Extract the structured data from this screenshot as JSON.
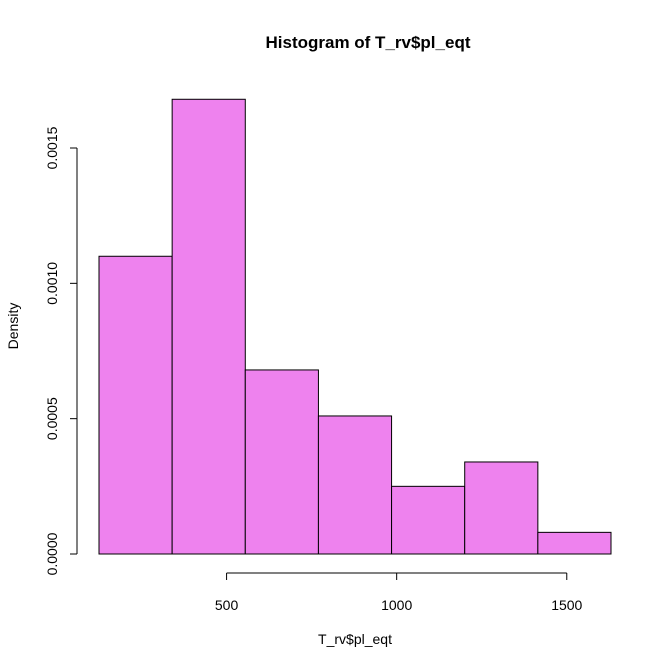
{
  "chart_data": {
    "type": "bar",
    "title": "Histogram of T_rv$pl_eqt",
    "xlabel": "T_rv$pl_eqt",
    "ylabel": "Density",
    "bins": [
      {
        "start": 125,
        "end": 340,
        "value": 0.0011
      },
      {
        "start": 340,
        "end": 555,
        "value": 0.00168
      },
      {
        "start": 555,
        "end": 770,
        "value": 0.00068
      },
      {
        "start": 770,
        "end": 985,
        "value": 0.00051
      },
      {
        "start": 985,
        "end": 1200,
        "value": 0.00025
      },
      {
        "start": 1200,
        "end": 1415,
        "value": 0.00034
      },
      {
        "start": 1415,
        "end": 1630,
        "value": 8e-05
      }
    ],
    "x_ticks": [
      500,
      1000,
      1500
    ],
    "x_tick_labels": [
      "500",
      "1000",
      "1500"
    ],
    "y_ticks": [
      0,
      0.0005,
      0.001,
      0.0015
    ],
    "y_tick_labels": [
      "0.0000",
      "0.0005",
      "0.0010",
      "0.0015"
    ],
    "xlim": [
      125,
      1630
    ],
    "ylim": [
      0,
      0.0015
    ],
    "bar_color": "#EE82EE",
    "edge_color": "#000000",
    "grid": false,
    "legend": "none"
  }
}
